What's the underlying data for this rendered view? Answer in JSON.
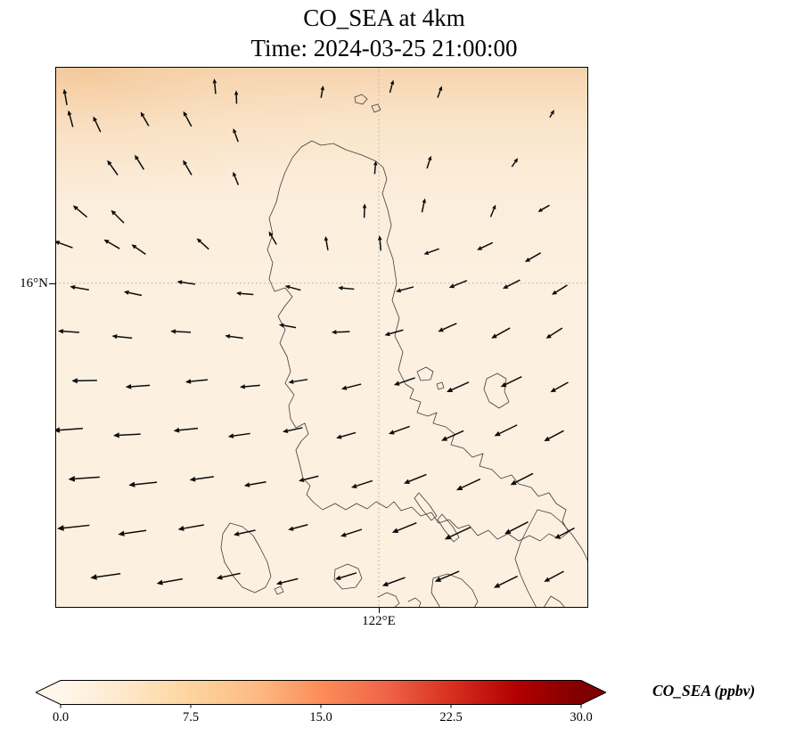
{
  "chart_data": {
    "type": "heatmap",
    "title": "CO_SEA at 4km",
    "subtitle": "Time: 2024-03-25 21:00:00",
    "variable": "CO_SEA",
    "level": "4km",
    "time": "2024-03-25 21:00:00",
    "units": "ppbv",
    "colormap": "OrRd",
    "field_estimate": {
      "background_ppbv": 2,
      "north_edge_band_ppbv": 6,
      "description": "nearly uniform pale field ~1-3 ppbv with slightly elevated values ~5-7 ppbv along the top (northern) edge"
    },
    "axes": {
      "grid_style": "dotted",
      "x_tick": {
        "label": "122°E",
        "frac": 0.607
      },
      "y_tick": {
        "label": "16°N",
        "frac": 0.4
      }
    },
    "colorbar": {
      "label": "CO_SEA (ppbv)",
      "ticks": [
        "0.0",
        "7.5",
        "15.0",
        "22.5",
        "30.0"
      ],
      "tick_values": [
        0,
        7.5,
        15,
        22.5,
        30
      ],
      "vmin": 0,
      "vmax": 30,
      "extend": "both",
      "colors": [
        "#fff7ec",
        "#fee8c8",
        "#fdd49e",
        "#fdbb84",
        "#fc8d59",
        "#ef6548",
        "#d7301f",
        "#b30000",
        "#7f0000"
      ]
    },
    "map_colors": {
      "base": "#fcf0e0",
      "coastline": "#3d3d3d",
      "arrow": "#0c0c0c"
    },
    "wind_vectors": [
      [
        0.02,
        0.06,
        100,
        13
      ],
      [
        0.3,
        0.04,
        95,
        12
      ],
      [
        0.34,
        0.06,
        92,
        10
      ],
      [
        0.5,
        0.05,
        80,
        9
      ],
      [
        0.63,
        0.04,
        75,
        10
      ],
      [
        0.72,
        0.05,
        70,
        9
      ],
      [
        0.03,
        0.1,
        105,
        14
      ],
      [
        0.08,
        0.11,
        115,
        14
      ],
      [
        0.17,
        0.1,
        120,
        13
      ],
      [
        0.25,
        0.1,
        118,
        14
      ],
      [
        0.34,
        0.13,
        110,
        11
      ],
      [
        0.93,
        0.09,
        60,
        5
      ],
      [
        0.11,
        0.19,
        125,
        15
      ],
      [
        0.16,
        0.18,
        122,
        14
      ],
      [
        0.25,
        0.19,
        120,
        14
      ],
      [
        0.34,
        0.21,
        112,
        11
      ],
      [
        0.6,
        0.19,
        85,
        10
      ],
      [
        0.7,
        0.18,
        72,
        10
      ],
      [
        0.86,
        0.18,
        55,
        7
      ],
      [
        0.05,
        0.27,
        140,
        15
      ],
      [
        0.12,
        0.28,
        135,
        15
      ],
      [
        0.58,
        0.27,
        88,
        11
      ],
      [
        0.69,
        0.26,
        78,
        11
      ],
      [
        0.82,
        0.27,
        68,
        10
      ],
      [
        0.92,
        0.26,
        210,
        10
      ],
      [
        0.02,
        0.33,
        160,
        16
      ],
      [
        0.11,
        0.33,
        150,
        15
      ],
      [
        0.16,
        0.34,
        145,
        14
      ],
      [
        0.28,
        0.33,
        138,
        13
      ],
      [
        0.41,
        0.32,
        120,
        12
      ],
      [
        0.51,
        0.33,
        100,
        11
      ],
      [
        0.61,
        0.33,
        95,
        12
      ],
      [
        0.71,
        0.34,
        200,
        13
      ],
      [
        0.81,
        0.33,
        205,
        14
      ],
      [
        0.9,
        0.35,
        210,
        15
      ],
      [
        0.05,
        0.41,
        170,
        16
      ],
      [
        0.15,
        0.42,
        168,
        15
      ],
      [
        0.25,
        0.4,
        172,
        15
      ],
      [
        0.36,
        0.42,
        175,
        14
      ],
      [
        0.45,
        0.41,
        165,
        13
      ],
      [
        0.55,
        0.41,
        175,
        13
      ],
      [
        0.66,
        0.41,
        195,
        15
      ],
      [
        0.76,
        0.4,
        202,
        16
      ],
      [
        0.86,
        0.4,
        207,
        16
      ],
      [
        0.95,
        0.41,
        212,
        15
      ],
      [
        0.03,
        0.49,
        176,
        18
      ],
      [
        0.13,
        0.5,
        174,
        17
      ],
      [
        0.24,
        0.49,
        177,
        17
      ],
      [
        0.34,
        0.5,
        172,
        15
      ],
      [
        0.44,
        0.48,
        170,
        14
      ],
      [
        0.54,
        0.49,
        182,
        15
      ],
      [
        0.64,
        0.49,
        196,
        16
      ],
      [
        0.74,
        0.48,
        204,
        17
      ],
      [
        0.84,
        0.49,
        209,
        18
      ],
      [
        0.94,
        0.49,
        213,
        16
      ],
      [
        0.06,
        0.58,
        181,
        22
      ],
      [
        0.16,
        0.59,
        184,
        21
      ],
      [
        0.27,
        0.58,
        186,
        19
      ],
      [
        0.37,
        0.59,
        185,
        17
      ],
      [
        0.46,
        0.58,
        189,
        16
      ],
      [
        0.56,
        0.59,
        194,
        17
      ],
      [
        0.66,
        0.58,
        199,
        19
      ],
      [
        0.76,
        0.59,
        204,
        21
      ],
      [
        0.86,
        0.58,
        206,
        20
      ],
      [
        0.95,
        0.59,
        209,
        17
      ],
      [
        0.03,
        0.67,
        184,
        26
      ],
      [
        0.14,
        0.68,
        183,
        24
      ],
      [
        0.25,
        0.67,
        186,
        21
      ],
      [
        0.35,
        0.68,
        188,
        19
      ],
      [
        0.45,
        0.67,
        192,
        17
      ],
      [
        0.55,
        0.68,
        196,
        17
      ],
      [
        0.65,
        0.67,
        200,
        19
      ],
      [
        0.75,
        0.68,
        204,
        21
      ],
      [
        0.85,
        0.67,
        206,
        22
      ],
      [
        0.94,
        0.68,
        208,
        19
      ],
      [
        0.06,
        0.76,
        184,
        28
      ],
      [
        0.17,
        0.77,
        186,
        25
      ],
      [
        0.28,
        0.76,
        188,
        21
      ],
      [
        0.38,
        0.77,
        190,
        19
      ],
      [
        0.48,
        0.76,
        194,
        17
      ],
      [
        0.58,
        0.77,
        198,
        19
      ],
      [
        0.68,
        0.76,
        202,
        21
      ],
      [
        0.78,
        0.77,
        205,
        23
      ],
      [
        0.88,
        0.76,
        207,
        22
      ],
      [
        0.04,
        0.85,
        186,
        29
      ],
      [
        0.15,
        0.86,
        188,
        25
      ],
      [
        0.26,
        0.85,
        190,
        23
      ],
      [
        0.36,
        0.86,
        192,
        19
      ],
      [
        0.46,
        0.85,
        195,
        17
      ],
      [
        0.56,
        0.86,
        198,
        19
      ],
      [
        0.66,
        0.85,
        202,
        23
      ],
      [
        0.76,
        0.86,
        205,
        25
      ],
      [
        0.87,
        0.85,
        207,
        23
      ],
      [
        0.96,
        0.86,
        208,
        19
      ],
      [
        0.1,
        0.94,
        188,
        27
      ],
      [
        0.22,
        0.95,
        190,
        23
      ],
      [
        0.33,
        0.94,
        192,
        21
      ],
      [
        0.44,
        0.95,
        194,
        19
      ],
      [
        0.55,
        0.94,
        197,
        19
      ],
      [
        0.64,
        0.95,
        200,
        21
      ],
      [
        0.74,
        0.94,
        203,
        23
      ],
      [
        0.85,
        0.95,
        206,
        23
      ],
      [
        0.94,
        0.94,
        208,
        19
      ]
    ],
    "coastlines": [
      "M 288,83 L 298,88 L 312,86 L 326,93 L 344,99 L 360,106 L 368,113 L 372,126 L 367,142 L 373,160 L 377,178 L 372,196 L 379,216 L 383,243 L 378,262 L 386,282 L 381,302 L 390,320 L 385,340 L 393,356 L 402,362 L 398,372 L 410,376 L 406,388 L 418,392 L 428,388 L 424,400 L 438,404 L 448,412 L 444,424 L 458,428 L 468,438 L 480,434 L 476,448 L 490,452 L 500,462 L 512,458 L 520,468 L 534,472 L 542,482 L 554,478 L 562,490 L 573,497 L 569,510 L 576,522 L 566,530 L 554,524 L 544,532 L 532,526 L 520,532 L 508,524 L 496,530 L 486,520 L 474,526 L 464,514 L 452,518 L 442,508 L 430,512 L 422,500 L 410,504 L 400,494 L 388,498 L 380,488 L 372,495 L 360,488 L 350,496 L 338,490 L 326,497 L 314,490 L 300,497 L 290,489 L 282,480 L 286,470 L 278,462 L 274,445 L 270,430 L 276,420 L 284,412 L 280,400 L 270,405 L 264,395 L 262,380 L 268,368 L 258,355 L 264,342 L 260,325 L 252,310 L 258,295 L 250,280 L 258,268 L 266,258 L 258,248 L 246,252 L 240,238 L 244,220 L 238,205 L 244,188 L 240,170 L 248,152 L 252,135 L 258,118 L 266,102 L 276,90 Z",
      "M 336,34 L 344,31 L 350,36 L 345,42 L 337,40 Z",
      "M 355,44 L 362,42 L 365,48 L 358,51 Z",
      "M 406,342 L 416,337 L 424,342 L 421,351 L 410,352 Z",
      "M 428,356 L 434,354 L 436,360 L 430,362 Z",
      "M 484,350 L 496,344 L 506,350 L 504,364 L 509,376 L 498,383 L 487,376 L 481,362 Z",
      "M 314,564 L 328,558 L 340,563 L 344,574 L 337,584 L 322,586 L 313,576 Z",
      "M 196,512 L 210,516 L 222,526 L 230,540 L 238,556 L 242,572 L 236,584 L 224,590 L 210,584 L 200,572 L 190,556 L 186,540 L 188,524 Z",
      "M 246,586 L 253,583 L 256,589 L 249,592 Z",
      "M 408,478 L 420,492 L 428,504 L 422,509 L 411,496 L 403,484 Z",
      "M 434,502 L 446,516 L 453,528 L 447,533 L 436,519 L 429,508 Z",
      "M 470,607 L 474,600 L 468,587 L 456,575 L 440,569 L 424,574 L 422,590 L 432,607",
      "M 362,595 L 372,590 L 382,594 L 386,602 L 380,607",
      "M 396,600 L 404,596 L 410,601 L 408,607",
      "M 540,607 L 530,588 L 522,570 L 516,552 L 522,534 L 531,516 L 541,497 L 556,501 L 568,511 L 580,525 L 591,541 L 597,553 L 598,560",
      "M 548,607 L 556,594 L 566,600 L 572,607"
    ]
  }
}
